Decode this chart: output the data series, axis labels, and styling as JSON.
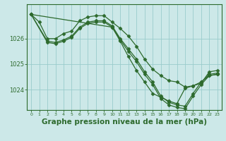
{
  "background_color": "#cce8e8",
  "grid_color": "#99cccc",
  "line_color": "#2d6a2d",
  "marker_color": "#2d6a2d",
  "xlabel": "Graphe pression niveau de la mer (hPa)",
  "xlabel_fontsize": 7.5,
  "yticks": [
    1024,
    1025,
    1026
  ],
  "ylim": [
    1023.2,
    1027.35
  ],
  "xlim": [
    -0.5,
    23.5
  ],
  "xticks": [
    0,
    1,
    2,
    3,
    4,
    5,
    6,
    7,
    8,
    9,
    10,
    11,
    12,
    13,
    14,
    15,
    16,
    17,
    18,
    19,
    20,
    21,
    22,
    23
  ],
  "series": [
    {
      "x": [
        0,
        1,
        2,
        3,
        4,
        5,
        6,
        7,
        8,
        9,
        10,
        11,
        12,
        13,
        14,
        15,
        16,
        17,
        18,
        19,
        20,
        21,
        22,
        23
      ],
      "y": [
        1026.95,
        1026.65,
        1026.0,
        1026.0,
        1026.2,
        1026.3,
        1026.7,
        1026.85,
        1026.9,
        1026.9,
        1026.65,
        1026.4,
        1026.1,
        1025.7,
        1025.2,
        1024.8,
        1024.55,
        1024.35,
        1024.3,
        1024.1,
        1024.15,
        1024.3,
        1024.55,
        1024.6
      ],
      "marker": "D",
      "markersize": 2.5,
      "linewidth": 0.9
    },
    {
      "x": [
        0,
        2,
        3,
        4,
        5,
        6,
        7,
        8,
        9,
        10,
        11,
        12,
        13,
        14,
        15,
        16,
        17,
        18,
        19,
        20,
        21,
        22,
        23
      ],
      "y": [
        1026.95,
        1025.9,
        1025.85,
        1025.95,
        1026.1,
        1026.45,
        1026.65,
        1026.7,
        1026.7,
        1026.5,
        1026.0,
        1025.6,
        1025.2,
        1024.7,
        1024.3,
        1023.75,
        1023.5,
        1023.4,
        1023.35,
        1023.85,
        1024.3,
        1024.6,
        1024.65
      ],
      "marker": "D",
      "markersize": 2.5,
      "linewidth": 0.9
    },
    {
      "x": [
        0,
        2,
        3,
        4,
        5,
        6,
        7,
        8,
        9,
        10,
        11,
        12,
        13,
        14,
        15,
        16,
        17,
        18,
        19,
        20,
        21,
        22,
        23
      ],
      "y": [
        1026.95,
        1025.85,
        1025.8,
        1025.9,
        1026.05,
        1026.4,
        1026.6,
        1026.65,
        1026.65,
        1026.45,
        1025.95,
        1025.5,
        1025.1,
        1024.6,
        1024.2,
        1023.65,
        1023.4,
        1023.3,
        1023.25,
        1023.75,
        1024.2,
        1024.55,
        1024.6
      ],
      "marker": "D",
      "markersize": 2.5,
      "linewidth": 0.9
    },
    {
      "x": [
        0,
        10,
        11,
        12,
        13,
        14,
        15,
        16,
        17,
        18,
        19,
        20,
        21,
        22,
        23
      ],
      "y": [
        1026.95,
        1026.45,
        1025.9,
        1025.3,
        1024.75,
        1024.3,
        1023.85,
        1023.7,
        1023.55,
        1023.45,
        1024.05,
        1024.15,
        1024.25,
        1024.7,
        1024.75
      ],
      "marker": "D",
      "markersize": 2.5,
      "linewidth": 0.9
    }
  ]
}
